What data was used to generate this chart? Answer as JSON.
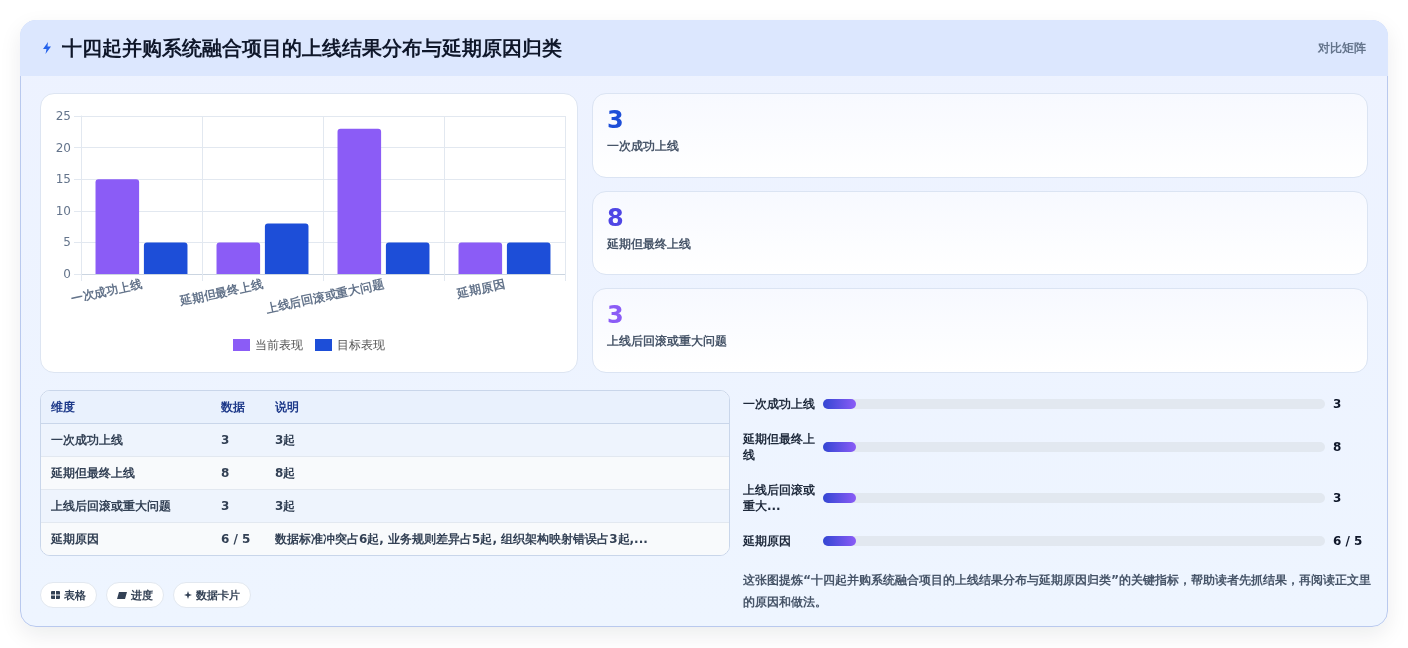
{
  "chart_data": [
    {
      "type": "other",
      "title": "十四起并购系统融合项目的上线结果分布与延期原因归类",
      "annotations": [
        "对比矩阵"
      ]
    },
    {
      "type": "bar",
      "categories": [
        "一次成功上线",
        "延期但最终上线",
        "上线后回滚或重大问题",
        "延期原因"
      ],
      "series": [
        {
          "name": "当前表现",
          "color": "#8b5cf6",
          "values": [
            15,
            5,
            23,
            5
          ]
        },
        {
          "name": "目标表现",
          "color": "#1d4ed8",
          "values": [
            5,
            8,
            5,
            5
          ]
        }
      ],
      "ylim": [
        0,
        25
      ],
      "yticks": [
        0,
        5,
        10,
        15,
        20,
        25
      ],
      "grid": true,
      "legend": "bottom"
    },
    {
      "type": "other",
      "categories": [
        "一次成功上线",
        "延期但最终上线",
        "上线后回滚或重大问题"
      ],
      "values": [
        3,
        8,
        3
      ],
      "data_labels": true
    },
    {
      "type": "other",
      "ylabel": "维度",
      "categories": [
        "数据",
        "说明"
      ],
      "y_categories": [
        "一次成功上线",
        "延期但最终上线",
        "上线后回滚或重大问题",
        "延期原因"
      ],
      "cell_labels": [
        [
          "3",
          "3起"
        ],
        [
          "8",
          "8起"
        ],
        [
          "3",
          "3起"
        ],
        [
          "6 / 5",
          "数据标准冲突占6起, 业务规则差异占5起, 组织架构映射错误占3起,..."
        ]
      ]
    },
    {
      "type": "other",
      "categories": [
        "一次成功上线",
        "延期但最终上线",
        "上线后回滚或重大...",
        "延期原因"
      ],
      "value_labels": [
        "3",
        "8",
        "3",
        "6 / 5"
      ]
    },
    {
      "type": "other",
      "categories": [
        "表格",
        "进度",
        "数据卡片"
      ],
      "annotations": [
        "这张图提炼“十四起并购系统融合项目的上线结果分布与延期原因归类”的关键指标，帮助读者先抓结果，再阅读正文里的原因和做法。"
      ]
    }
  ]
}
